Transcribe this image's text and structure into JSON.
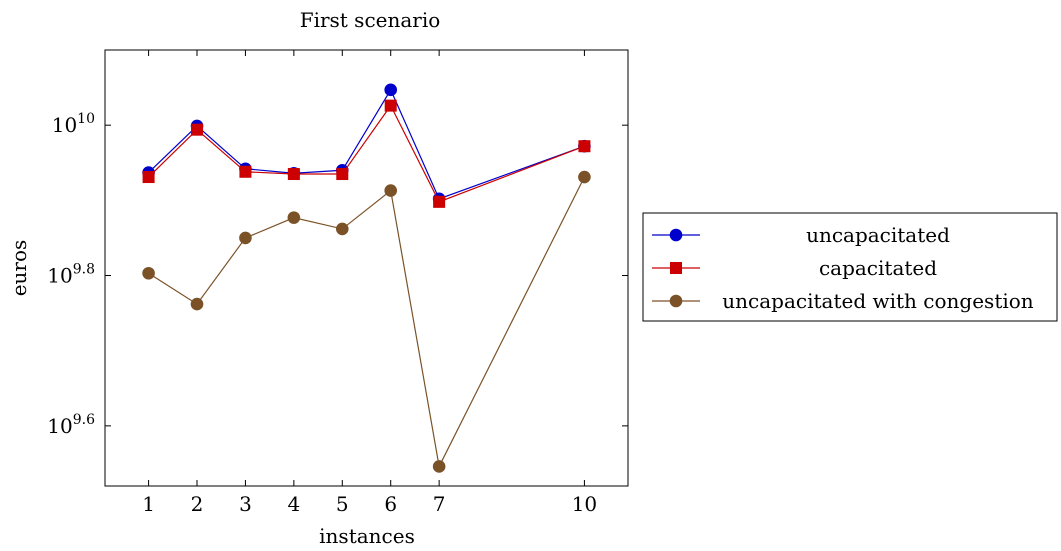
{
  "chart_data": {
    "type": "line",
    "title": "First scenario",
    "xlabel": "instances",
    "ylabel": "euros",
    "x": [
      1,
      2,
      3,
      4,
      5,
      6,
      7,
      10
    ],
    "x_ticks": [
      {
        "value": 1,
        "label": "1"
      },
      {
        "value": 2,
        "label": "2"
      },
      {
        "value": 3,
        "label": "3"
      },
      {
        "value": 4,
        "label": "4"
      },
      {
        "value": 5,
        "label": "5"
      },
      {
        "value": 6,
        "label": "6"
      },
      {
        "value": 7,
        "label": "7"
      },
      {
        "value": 10,
        "label": "10"
      }
    ],
    "y_ticks": [
      {
        "exp": 10,
        "base": "10",
        "sup": "10"
      },
      {
        "exp": 9.8,
        "base": "10",
        "sup": "9.8"
      },
      {
        "exp": 9.6,
        "base": "10",
        "sup": "9.6"
      }
    ],
    "y_scale": "log10",
    "xlim": [
      0.1,
      10.9
    ],
    "ylim_exponent": [
      9.52,
      10.1
    ],
    "grid": false,
    "legend_position": "outside-right",
    "series": [
      {
        "name": "uncapacitated",
        "color": "#0000cc",
        "marker": "circle",
        "log10_values": [
          9.937,
          9.999,
          9.942,
          9.936,
          9.94,
          10.047,
          9.902,
          9.972
        ]
      },
      {
        "name": "capacitated",
        "color": "#cc0000",
        "marker": "square",
        "log10_values": [
          9.931,
          9.994,
          9.938,
          9.935,
          9.935,
          10.026,
          9.898,
          9.972
        ]
      },
      {
        "name": "uncapacitated with congestion",
        "color": "#7b5228",
        "marker": "circle",
        "log10_values": [
          9.803,
          9.762,
          9.85,
          9.877,
          9.862,
          9.913,
          9.546,
          9.931
        ]
      }
    ]
  }
}
